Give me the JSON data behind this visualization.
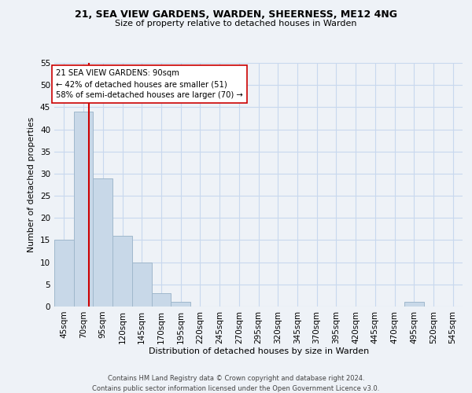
{
  "title": "21, SEA VIEW GARDENS, WARDEN, SHEERNESS, ME12 4NG",
  "subtitle": "Size of property relative to detached houses in Warden",
  "xlabel": "Distribution of detached houses by size in Warden",
  "ylabel": "Number of detached properties",
  "bar_edges": [
    45,
    70,
    95,
    120,
    145,
    170,
    195,
    220,
    245,
    270,
    295,
    320,
    345,
    370,
    395,
    420,
    445,
    470,
    495,
    520,
    545
  ],
  "bar_heights": [
    15,
    44,
    29,
    16,
    10,
    3,
    1,
    0,
    0,
    0,
    0,
    0,
    0,
    0,
    0,
    0,
    0,
    0,
    1,
    0,
    0
  ],
  "bar_color": "#c8d8e8",
  "bar_edgecolor": "#a0b8cc",
  "property_size": 90,
  "vline_color": "#cc0000",
  "annotation_line1": "21 SEA VIEW GARDENS: 90sqm",
  "annotation_line2": "← 42% of detached houses are smaller (51)",
  "annotation_line3": "58% of semi-detached houses are larger (70) →",
  "annotation_boxcolor": "white",
  "annotation_boxedgecolor": "#cc0000",
  "ylim": [
    0,
    55
  ],
  "yticks": [
    0,
    5,
    10,
    15,
    20,
    25,
    30,
    35,
    40,
    45,
    50,
    55
  ],
  "grid_color": "#c8d8ee",
  "footer_line1": "Contains HM Land Registry data © Crown copyright and database right 2024.",
  "footer_line2": "Contains public sector information licensed under the Open Government Licence v3.0.",
  "background_color": "#eef2f7"
}
